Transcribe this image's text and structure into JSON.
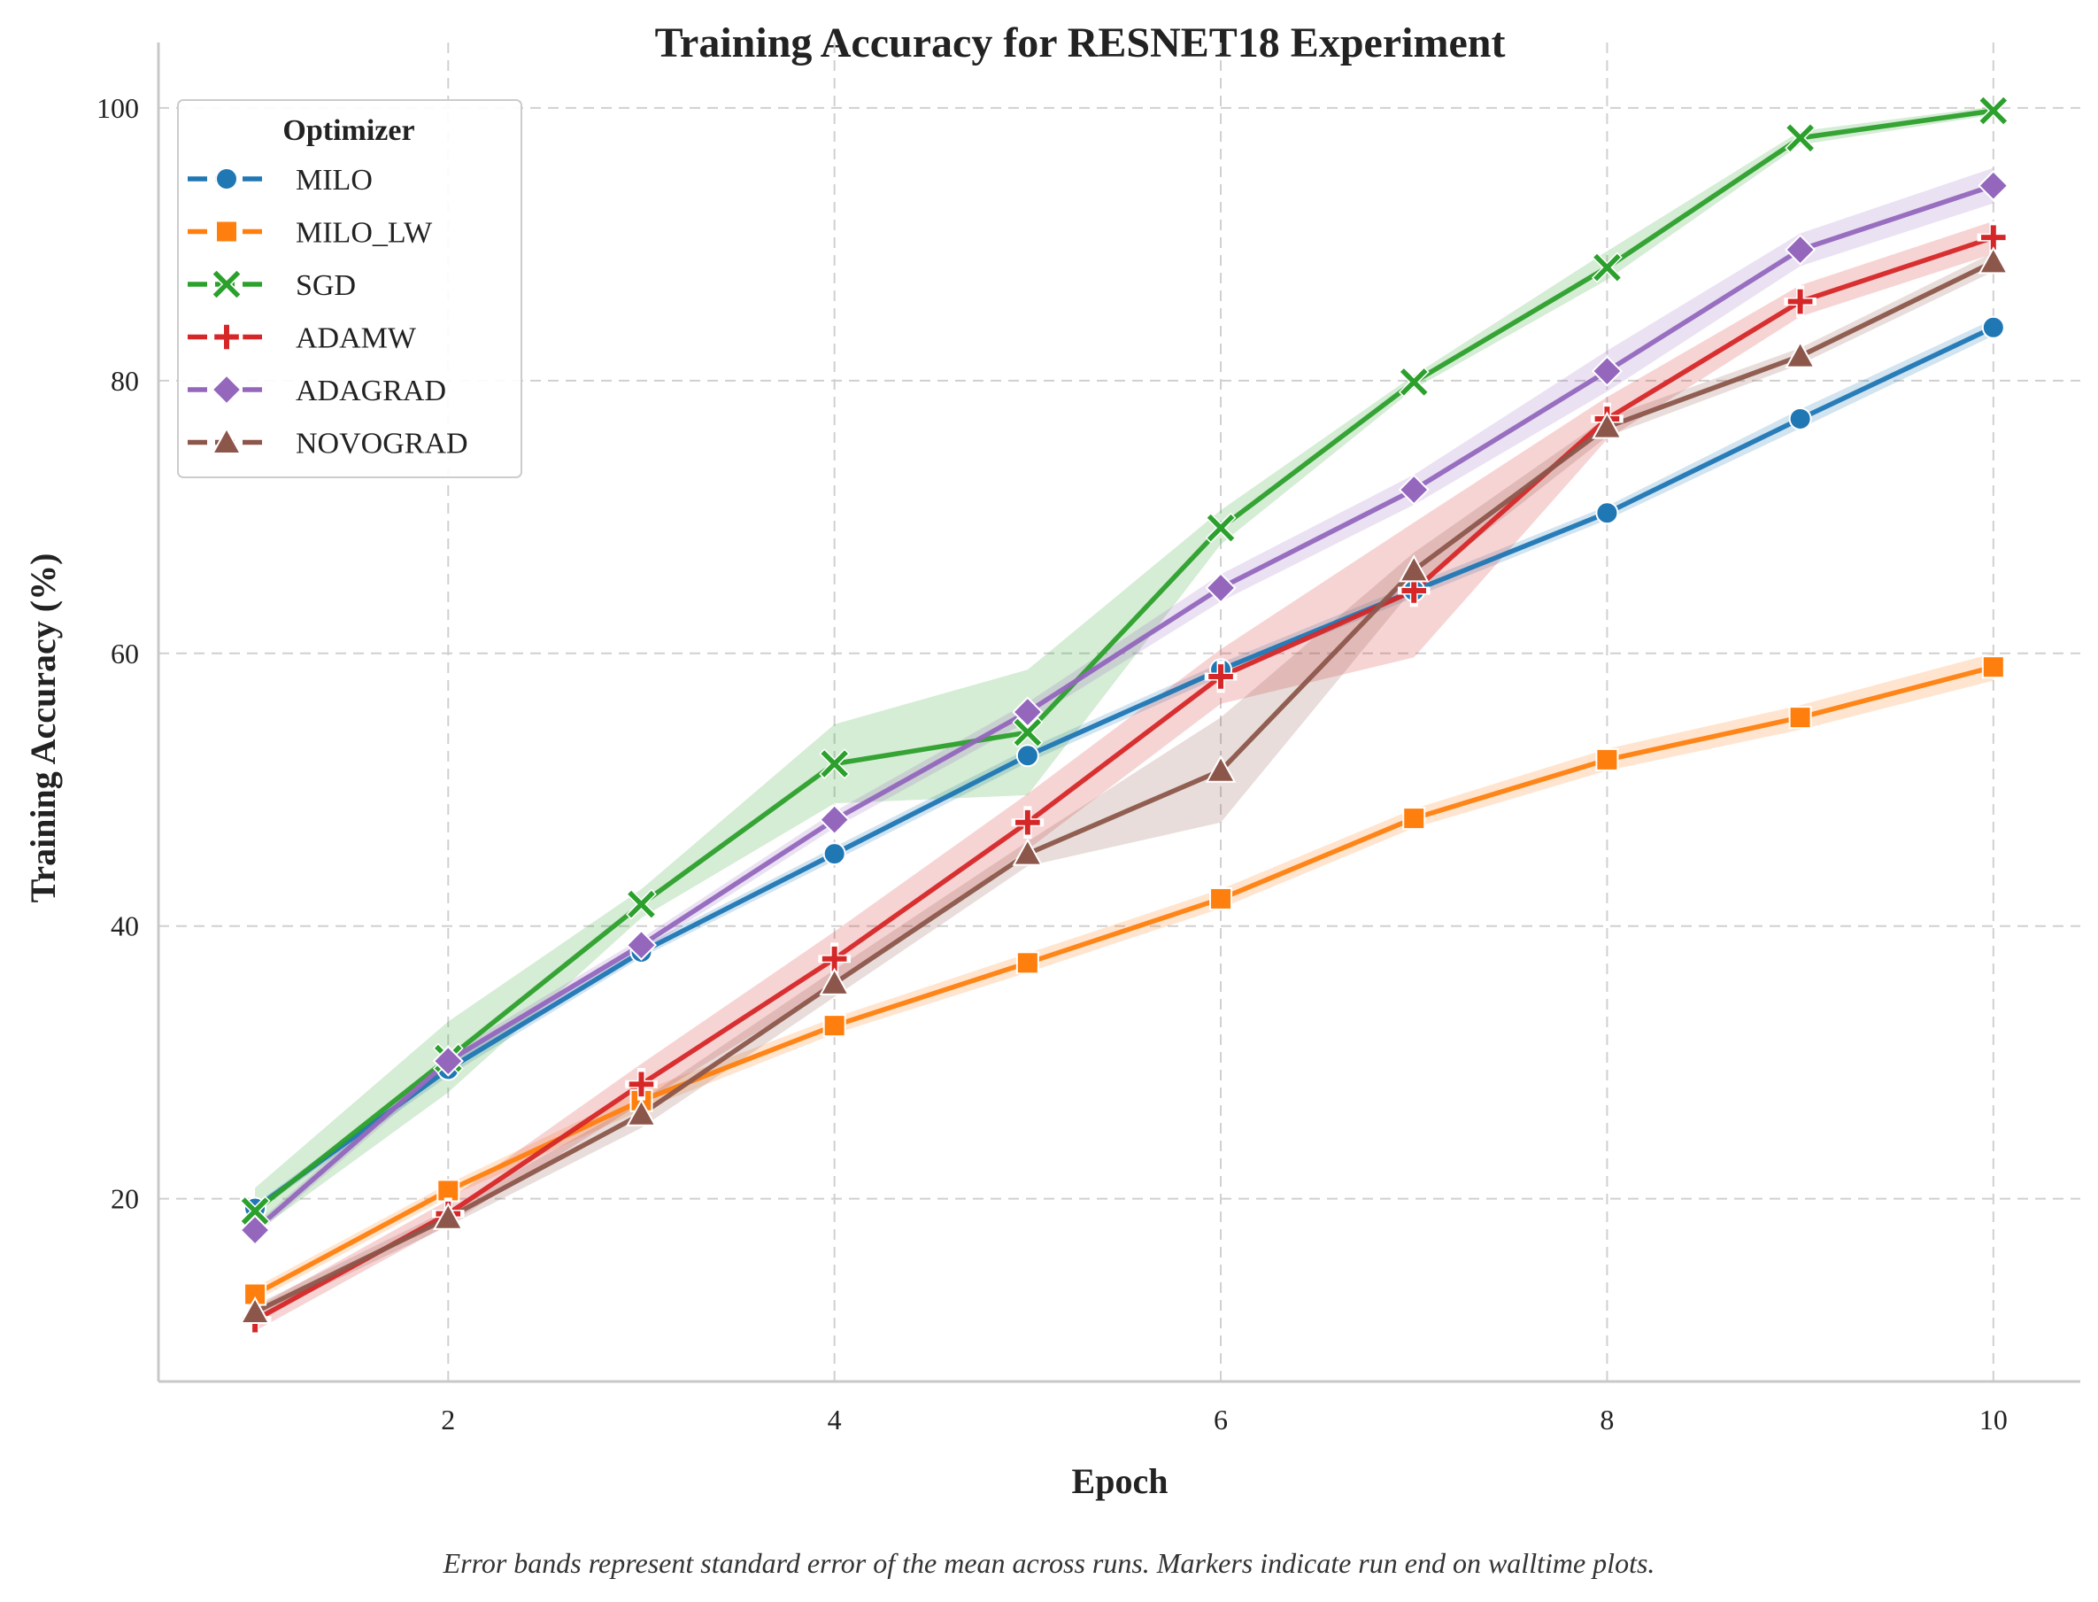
{
  "chart_data": {
    "type": "line",
    "title": "Training Accuracy for RESNET18 Experiment",
    "xlabel": "Epoch",
    "ylabel": "Training Accuracy (%)",
    "caption": "Error bands represent standard error of the mean across runs. Markers indicate run end on walltime plots.",
    "x": [
      1,
      2,
      3,
      4,
      5,
      6,
      7,
      8,
      9,
      10
    ],
    "xlim": [
      0.5,
      10.45
    ],
    "ylim": [
      6.6,
      104.8
    ],
    "xticks": [
      2,
      4,
      6,
      8,
      10
    ],
    "yticks": [
      20,
      40,
      60,
      80,
      100
    ],
    "grid": true,
    "legend": {
      "title": "Optimizer",
      "placement": "top-left"
    },
    "series": [
      {
        "name": "MILO",
        "color": "#1f77b4",
        "marker": "circle",
        "values": [
          19.3,
          29.5,
          38.1,
          45.3,
          52.5,
          58.8,
          64.6,
          70.3,
          77.2,
          83.9
        ],
        "lower": [
          19.0,
          29.0,
          37.7,
          44.8,
          52.0,
          58.3,
          64.1,
          69.8,
          76.5,
          83.3
        ],
        "upper": [
          19.6,
          30.0,
          38.5,
          45.8,
          53.0,
          59.3,
          65.1,
          70.8,
          77.9,
          84.5
        ]
      },
      {
        "name": "MILO_LW",
        "color": "#ff7f0e",
        "marker": "square",
        "values": [
          13.0,
          20.6,
          27.2,
          32.7,
          37.3,
          42.0,
          47.9,
          52.2,
          55.3,
          59.0
        ],
        "lower": [
          12.5,
          20.1,
          26.5,
          32.1,
          36.6,
          41.3,
          47.2,
          51.4,
          54.4,
          58.0
        ],
        "upper": [
          13.5,
          21.1,
          27.9,
          33.3,
          38.0,
          42.7,
          48.6,
          53.0,
          56.2,
          60.0
        ]
      },
      {
        "name": "SGD",
        "color": "#2ca02c",
        "marker": "x",
        "values": [
          19.1,
          30.3,
          41.6,
          51.9,
          54.2,
          69.2,
          79.9,
          88.3,
          97.8,
          99.8
        ],
        "lower": [
          17.5,
          27.8,
          40.6,
          49.0,
          49.6,
          68.0,
          79.4,
          87.4,
          97.3,
          99.5
        ],
        "upper": [
          20.8,
          33.0,
          42.7,
          54.8,
          58.8,
          70.5,
          80.4,
          89.5,
          98.3,
          100.1
        ]
      },
      {
        "name": "ADAMW",
        "color": "#d62728",
        "marker": "plus",
        "values": [
          11.1,
          18.9,
          28.4,
          37.6,
          47.6,
          58.3,
          64.6,
          77.2,
          85.8,
          90.5
        ],
        "lower": [
          10.3,
          18.1,
          27.0,
          35.7,
          45.6,
          56.3,
          59.7,
          75.7,
          84.7,
          89.3
        ],
        "upper": [
          12.0,
          19.9,
          29.9,
          39.6,
          49.7,
          60.3,
          69.6,
          78.8,
          87.0,
          91.7
        ]
      },
      {
        "name": "ADAGRAD",
        "color": "#9467bd",
        "marker": "diamond",
        "values": [
          17.7,
          30.1,
          38.6,
          47.8,
          55.7,
          64.8,
          72.0,
          80.7,
          89.6,
          94.3
        ],
        "lower": [
          17.3,
          29.6,
          38.1,
          47.2,
          55.0,
          63.8,
          70.9,
          79.2,
          88.4,
          93.0
        ],
        "upper": [
          18.1,
          30.6,
          39.1,
          48.4,
          56.4,
          65.8,
          73.1,
          82.2,
          90.8,
          95.6
        ]
      },
      {
        "name": "NOVOGRAD",
        "color": "#8c564b",
        "marker": "triangle",
        "values": [
          11.7,
          18.6,
          26.2,
          35.8,
          45.3,
          51.4,
          66.1,
          76.6,
          81.8,
          88.7
        ],
        "lower": [
          11.2,
          18.0,
          25.2,
          34.8,
          44.4,
          47.6,
          64.8,
          75.9,
          81.2,
          88.0
        ],
        "upper": [
          12.2,
          19.2,
          27.2,
          36.8,
          46.2,
          55.3,
          67.4,
          77.3,
          82.4,
          89.4
        ]
      }
    ]
  }
}
